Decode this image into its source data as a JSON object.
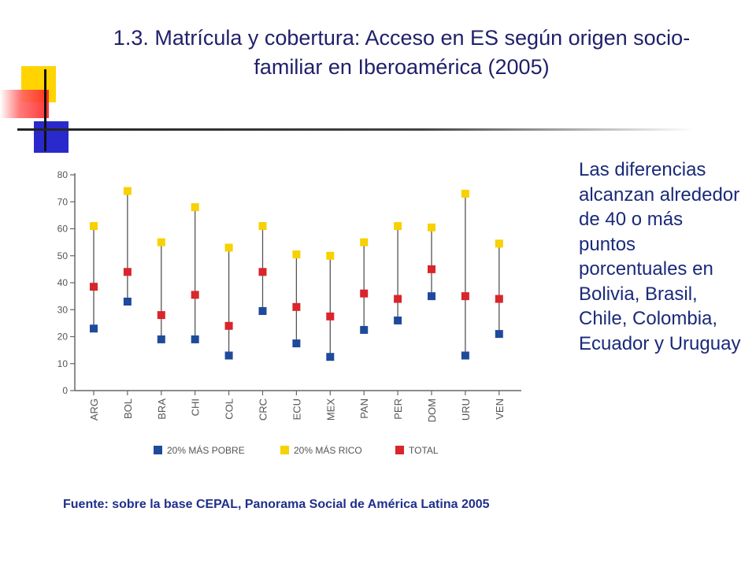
{
  "slide": {
    "title_line1": "1.3. Matrícula y cobertura: Acceso en ES según origen socio-",
    "title_line2": "familiar en Iberoamérica (2005)",
    "side_note": "Las diferencias alcanzan alrededor de 40 o más puntos porcentuales en Bolivia, Brasil, Chile, Colombia, Ecuador y Uruguay",
    "source": "Fuente: sobre la base CEPAL, Panorama Social de América Latina 2005",
    "colors": {
      "title": "#20206a",
      "text": "#1a2a7a"
    }
  },
  "chart_data": {
    "type": "scatter",
    "title": "",
    "xlabel": "",
    "ylabel": "",
    "ylim": [
      0,
      80
    ],
    "yticks": [
      0,
      10,
      20,
      30,
      40,
      50,
      60,
      70,
      80
    ],
    "grid": false,
    "legend_position": "bottom",
    "categories": [
      "ARG",
      "BOL",
      "BRA",
      "CHI",
      "COL",
      "CRC",
      "ECU",
      "MEX",
      "PAN",
      "PER",
      "DOM",
      "URU",
      "VEN"
    ],
    "series": [
      {
        "name": "20% MÁS POBRE",
        "color": "#1f4a9c",
        "values": [
          23,
          33,
          19,
          19,
          13,
          29.5,
          17.5,
          12.5,
          22.5,
          26,
          35,
          13,
          21
        ]
      },
      {
        "name": "20% MÁS RICO",
        "color": "#f7d100",
        "values": [
          61,
          74,
          55,
          68,
          53,
          61,
          50.5,
          50,
          55,
          61,
          60.5,
          73,
          54.5
        ]
      },
      {
        "name": "TOTAL",
        "color": "#d9252b",
        "values": [
          38.5,
          44,
          28,
          35.5,
          24,
          44,
          31,
          27.5,
          36,
          34,
          45,
          35,
          34
        ]
      }
    ]
  }
}
